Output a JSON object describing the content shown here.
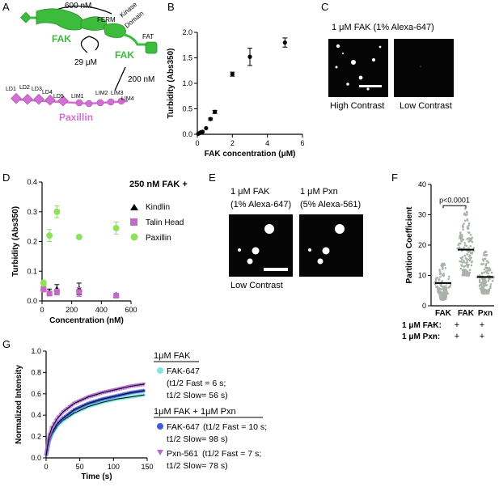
{
  "panel_labels": {
    "A": "A",
    "B": "B",
    "C": "C",
    "D": "D",
    "E": "E",
    "F": "F",
    "G": "G"
  },
  "colors": {
    "fak": "#3dbb3d",
    "paxillin": "#d36fd3",
    "talin": "#c36bc3",
    "scatter": "#9aa59a",
    "fak647": "#7de8e3",
    "fak_pxn": "#3a5fd8",
    "pxn561": "#b56ad6"
  },
  "panel_a": {
    "k600": "600 nM",
    "ferm": "FERM",
    "kinase": "Kinase",
    "domain": "Domain",
    "fat": "FAT",
    "fak_left": "FAK",
    "fak_right": "FAK",
    "k29": "29 μM",
    "k200": "200 nM",
    "ld1": "LD1",
    "ld2": "LD2",
    "ld3": "LD3",
    "ld4": "LD4",
    "ld5": "LD5",
    "lim1": "LIM1",
    "lim2": "LIM2",
    "lim3": "LIM3",
    "lim4": "LIM4",
    "paxillin": "Paxillin"
  },
  "panel_c": {
    "title": "1 μM FAK  (1% Alexa-647)",
    "left_caption": "High Contrast",
    "right_caption": "Low Contrast"
  },
  "panel_d": {
    "legend_title": "250 nM FAK +"
  },
  "panel_e": {
    "left_line1": "1 μM FAK",
    "left_line2": "(1% Alexa-647)",
    "right_line1": "1 μM Pxn",
    "right_line2": "(5% Alexa-561)",
    "caption": "Low Contrast"
  },
  "panel_f": {
    "row1_label": "1 μM FAK:",
    "row2_label": "1 μM Pxn:",
    "row1": [
      "+",
      "+",
      "+"
    ],
    "row2": [
      "-",
      "+",
      "+"
    ]
  },
  "panel_g": {
    "header1": "1μM FAK",
    "s1_name": "FAK-647",
    "s1_fast": "(t1/2 Fast = 6 s;",
    "s1_slow": "t1/2 Slow= 56 s)",
    "header2": "1μM FAK + 1μM Pxn",
    "s2_name": "FAK-647",
    "s2_fast": "(t1/2 Fast = 10 s;",
    "s2_slow": "t1/2 Slow= 98 s)",
    "s3_name": "Pxn-561",
    "s3_fast": "(t1/2 Fast = 7 s;",
    "s3_slow": "t1/2 Slow= 78 s)"
  },
  "chart_data": [
    {
      "id": "B",
      "type": "scatter",
      "xlabel": "FAK concentration (μM)",
      "ylabel": "Turbidity (Abs350)",
      "xlim": [
        0,
        6
      ],
      "ylim": [
        0,
        2.0
      ],
      "xticks": [
        "0",
        "2",
        "4",
        "6"
      ],
      "yticks": [
        "0.0",
        "0.5",
        "1.0",
        "1.5",
        "2.0"
      ],
      "series": [
        {
          "x": [
            0.05,
            0.1,
            0.2,
            0.3,
            0.5,
            0.75,
            1,
            2,
            3,
            5
          ],
          "y": [
            0.01,
            0.02,
            0.04,
            0.05,
            0.12,
            0.3,
            0.44,
            1.18,
            1.52,
            1.8
          ],
          "err": [
            0,
            0,
            0,
            0,
            0,
            0.02,
            0.03,
            0.04,
            0.17,
            0.09
          ]
        }
      ]
    },
    {
      "id": "D",
      "type": "scatter",
      "xlabel": "Concentration (nM)",
      "ylabel": "Turbidity (Abs350)",
      "xlim": [
        0,
        600
      ],
      "ylim": [
        0,
        0.4
      ],
      "xticks": [
        "0",
        "200",
        "400",
        "600"
      ],
      "yticks": [
        "0.0",
        "0.1",
        "0.2",
        "0.3",
        "0.4"
      ],
      "series": [
        {
          "name": "Kindlin",
          "x": [
            10,
            50,
            100,
            250,
            500
          ],
          "y": [
            0.045,
            0.03,
            0.04,
            0.04,
            0.02
          ],
          "err": [
            0.01,
            0.01,
            0.015,
            0.02,
            0.005
          ]
        },
        {
          "name": "Talin Head",
          "x": [
            10,
            50,
            100,
            250,
            500
          ],
          "y": [
            0.04,
            0.025,
            0.03,
            0.03,
            0.018
          ],
          "err": [
            0.01,
            0.008,
            0.01,
            0.015,
            0.005
          ]
        },
        {
          "name": "Paxillin",
          "x": [
            10,
            50,
            100,
            250,
            500
          ],
          "y": [
            0.06,
            0.22,
            0.3,
            0.215,
            0.245
          ],
          "err": [
            0.01,
            0.02,
            0.02,
            0.005,
            0.02
          ]
        }
      ]
    },
    {
      "id": "F",
      "type": "scatter",
      "ylabel": "Partition Coefficient",
      "ylim": [
        0,
        40
      ],
      "categories": [
        "FAK",
        "FAK",
        "Pxn"
      ],
      "yticks": [
        "0",
        "10",
        "20",
        "30",
        "40"
      ],
      "medians": [
        7.5,
        18.5,
        9.5
      ],
      "annotation": "p<0.0001"
    },
    {
      "id": "G",
      "type": "line",
      "xlabel": "Time (s)",
      "ylabel": "Normalized Intensity",
      "xlim": [
        0,
        180
      ],
      "ylim": [
        0,
        1.0
      ],
      "xticks": [
        "0",
        "50",
        "100",
        "150"
      ],
      "yticks": [
        "0.0",
        "0.2",
        "0.4",
        "0.6",
        "0.8",
        "1.0"
      ],
      "series": [
        {
          "name": "FAK-647",
          "x": [
            0,
            5,
            10,
            20,
            30,
            50,
            75,
            100,
            125,
            150,
            175
          ],
          "y": [
            0.02,
            0.15,
            0.22,
            0.3,
            0.35,
            0.42,
            0.48,
            0.52,
            0.55,
            0.57,
            0.59
          ]
        },
        {
          "name": "FAK-647 + Pxn",
          "x": [
            0,
            5,
            10,
            20,
            30,
            50,
            75,
            100,
            125,
            150,
            175
          ],
          "y": [
            0.02,
            0.16,
            0.23,
            0.32,
            0.37,
            0.45,
            0.51,
            0.55,
            0.58,
            0.61,
            0.63
          ]
        },
        {
          "name": "Pxn-561",
          "x": [
            0,
            5,
            10,
            20,
            30,
            50,
            75,
            100,
            125,
            150,
            175
          ],
          "y": [
            0.02,
            0.2,
            0.28,
            0.37,
            0.43,
            0.51,
            0.57,
            0.61,
            0.64,
            0.67,
            0.69
          ]
        }
      ]
    }
  ]
}
